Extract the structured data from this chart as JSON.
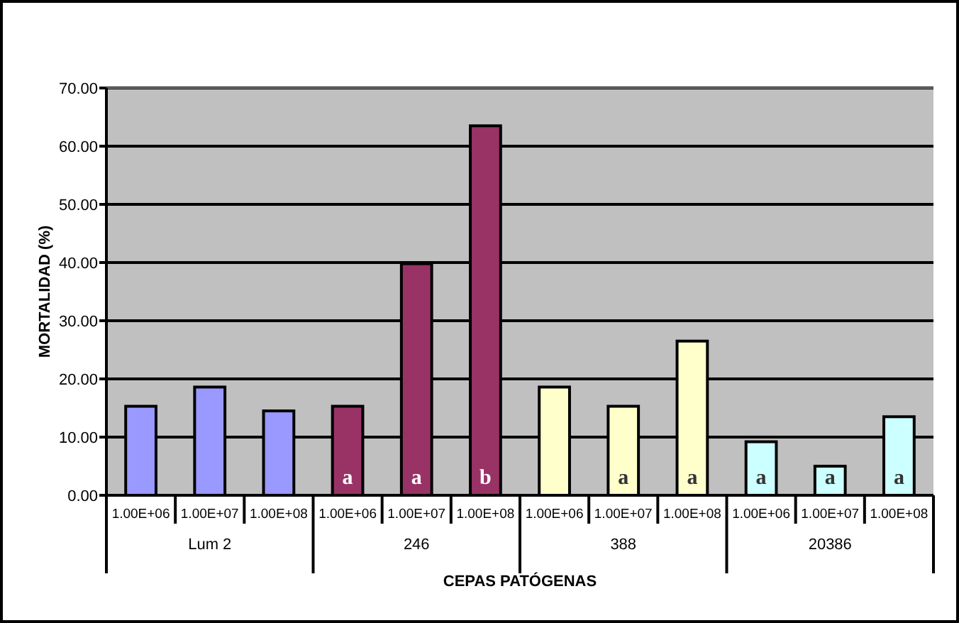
{
  "chart_data": {
    "type": "bar",
    "xlabel": "CEPAS PATÓGENAS",
    "ylabel": "MORTALIDAD (%)",
    "categories": [
      "1.00E+06",
      "1.00E+07",
      "1.00E+08",
      "1.00E+06",
      "1.00E+07",
      "1.00E+08",
      "1.00E+06",
      "1.00E+07",
      "1.00E+08",
      "1.00E+06",
      "1.00E+07",
      "1.00E+08"
    ],
    "values": [
      15.3,
      18.6,
      14.5,
      15.3,
      39.8,
      63.5,
      18.6,
      15.3,
      26.5,
      9.2,
      5.0,
      13.5
    ],
    "colors": [
      "#9999ff",
      "#9999ff",
      "#9999ff",
      "#993366",
      "#993366",
      "#993366",
      "#ffffcc",
      "#ffffcc",
      "#ffffcc",
      "#ccffff",
      "#ccffff",
      "#ccffff"
    ],
    "value_labels": [
      null,
      null,
      null,
      "a",
      "a",
      "b",
      null,
      "a",
      "a",
      "a",
      "a",
      "a"
    ],
    "annotations": [
      "Lum 2",
      "246",
      "388",
      "20386"
    ],
    "ylim": [
      0,
      70
    ],
    "yticks": [
      {
        "value": 0,
        "label": "0.00"
      },
      {
        "value": 10,
        "label": "10.00"
      },
      {
        "value": 20,
        "label": "20.00"
      },
      {
        "value": 30,
        "label": "30.00"
      },
      {
        "value": 40,
        "label": "40.00"
      },
      {
        "value": 50,
        "label": "50.00"
      },
      {
        "value": 60,
        "label": "60.00"
      },
      {
        "value": 70,
        "label": "70.00"
      }
    ],
    "grid": true
  }
}
